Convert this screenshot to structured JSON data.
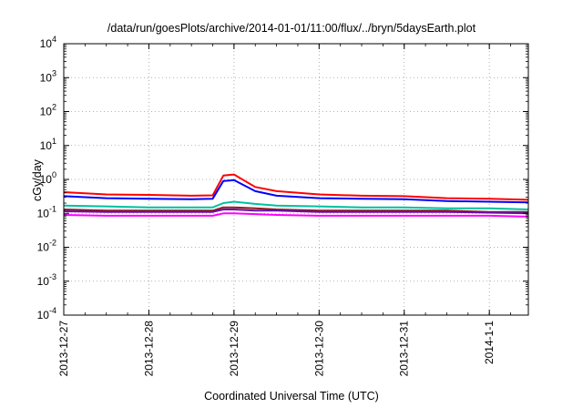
{
  "chart_data": {
    "type": "line",
    "title": "/data/run/goesPlots/archive/2014-01-01/11:00/flux/../bryn/5daysEarth.plot",
    "xlabel": "Coordinated Universal Time (UTC)",
    "ylabel": "cGy/day",
    "yscale": "log",
    "ylim": [
      0.0001,
      10000
    ],
    "y_ticks": [
      {
        "base": "10",
        "exp": "-4",
        "value": 0.0001
      },
      {
        "base": "10",
        "exp": "-3",
        "value": 0.001
      },
      {
        "base": "10",
        "exp": "-2",
        "value": 0.01
      },
      {
        "base": "10",
        "exp": "-1",
        "value": 0.1
      },
      {
        "base": "10",
        "exp": "0",
        "value": 1
      },
      {
        "base": "10",
        "exp": "1",
        "value": 10
      },
      {
        "base": "10",
        "exp": "2",
        "value": 100
      },
      {
        "base": "10",
        "exp": "3",
        "value": 1000
      },
      {
        "base": "10",
        "exp": "4",
        "value": 10000
      }
    ],
    "xlim": [
      "2013-12-27 00:00",
      "2014-01-01 11:00"
    ],
    "x_ticks": [
      {
        "label": "2013-12-27",
        "value": "2013-12-27"
      },
      {
        "label": "2013-12-28",
        "value": "2013-12-28"
      },
      {
        "label": "2013-12-29",
        "value": "2013-12-29"
      },
      {
        "label": "2013-12-30",
        "value": "2013-12-30"
      },
      {
        "label": "2013-12-31",
        "value": "2013-12-31"
      },
      {
        "label": "2014-1-1",
        "value": "2014-01-01"
      }
    ],
    "grid": true,
    "x": [
      "2013-12-27 00:00",
      "2013-12-27 12:00",
      "2013-12-28 00:00",
      "2013-12-28 12:00",
      "2013-12-28 18:00",
      "2013-12-28 21:00",
      "2013-12-29 00:00",
      "2013-12-29 06:00",
      "2013-12-29 12:00",
      "2013-12-30 00:00",
      "2013-12-30 12:00",
      "2013-12-31 00:00",
      "2013-12-31 12:00",
      "2014-01-01 00:00",
      "2014-01-01 11:00"
    ],
    "series": [
      {
        "color": "#ff0000",
        "values": [
          0.42,
          0.36,
          0.35,
          0.33,
          0.34,
          1.3,
          1.4,
          0.6,
          0.45,
          0.36,
          0.33,
          0.32,
          0.28,
          0.27,
          0.25
        ]
      },
      {
        "color": "#0000ff",
        "values": [
          0.32,
          0.28,
          0.27,
          0.26,
          0.27,
          0.9,
          0.95,
          0.45,
          0.33,
          0.28,
          0.27,
          0.26,
          0.23,
          0.22,
          0.21
        ]
      },
      {
        "color": "#00c0a0",
        "values": [
          0.17,
          0.16,
          0.15,
          0.15,
          0.15,
          0.2,
          0.22,
          0.19,
          0.17,
          0.16,
          0.15,
          0.15,
          0.14,
          0.14,
          0.13
        ]
      },
      {
        "color": "#8b1a1a",
        "values": [
          0.13,
          0.12,
          0.12,
          0.12,
          0.12,
          0.15,
          0.15,
          0.14,
          0.13,
          0.12,
          0.12,
          0.12,
          0.12,
          0.11,
          0.11
        ]
      },
      {
        "color": "#6a0dad",
        "values": [
          0.115,
          0.11,
          0.11,
          0.11,
          0.11,
          0.13,
          0.13,
          0.12,
          0.12,
          0.11,
          0.11,
          0.11,
          0.11,
          0.105,
          0.1
        ]
      },
      {
        "color": "#ff00ff",
        "values": [
          0.09,
          0.085,
          0.085,
          0.085,
          0.085,
          0.1,
          0.1,
          0.095,
          0.09,
          0.085,
          0.085,
          0.085,
          0.085,
          0.085,
          0.08
        ]
      }
    ]
  }
}
